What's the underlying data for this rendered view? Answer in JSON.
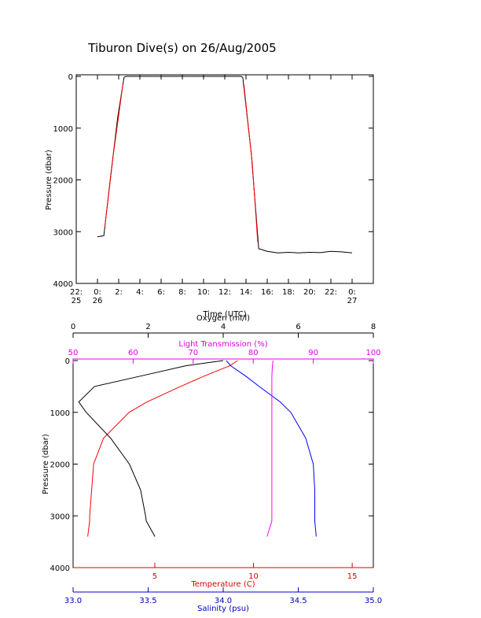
{
  "title": "Tiburon Dive(s) on 26/Aug/2005",
  "chart_data": [
    {
      "type": "line",
      "x_label": "Time (UTC)",
      "y_label": "Pressure (dbar)",
      "xlim": [
        -2,
        26
      ],
      "ylim": [
        0,
        4000
      ],
      "y_reversed": true,
      "xticks": [
        {
          "value": -2,
          "label": "22:\n25"
        },
        {
          "value": 0,
          "label": "0:\n26"
        },
        {
          "value": 2,
          "label": "2:"
        },
        {
          "value": 4,
          "label": "4:"
        },
        {
          "value": 6,
          "label": "6:"
        },
        {
          "value": 8,
          "label": "8:"
        },
        {
          "value": 10,
          "label": "10:"
        },
        {
          "value": 12,
          "label": "12:"
        },
        {
          "value": 14,
          "label": "14:"
        },
        {
          "value": 16,
          "label": "16:"
        },
        {
          "value": 18,
          "label": "18:"
        },
        {
          "value": 20,
          "label": "20:"
        },
        {
          "value": 22,
          "label": "22:"
        },
        {
          "value": 24,
          "label": "0:\n27"
        }
      ],
      "yticks": [
        0,
        1000,
        2000,
        3000,
        4000
      ],
      "series": [
        {
          "color": "#000000",
          "x": [
            0,
            0.6,
            1.2,
            1.9,
            2.5,
            2.7,
            13.5,
            13.7,
            14.5,
            15.2,
            16,
            17,
            18,
            19,
            20,
            21,
            22,
            23,
            24
          ],
          "values": [
            3100,
            3080,
            2000,
            800,
            20,
            0,
            0,
            20,
            1500,
            3330,
            3380,
            3410,
            3400,
            3410,
            3400,
            3405,
            3380,
            3390,
            3410
          ]
        },
        {
          "color": "#ff0000",
          "x": [
            0.7,
            1.5,
            2.4,
            null,
            13.8,
            14.6,
            15.1
          ],
          "values": [
            2900,
            1500,
            150,
            null,
            150,
            1700,
            3200
          ]
        }
      ]
    },
    {
      "type": "line",
      "y_label": "Pressure (dbar)",
      "ylim": [
        0,
        4000
      ],
      "y_reversed": true,
      "yticks": [
        0,
        1000,
        2000,
        3000,
        4000
      ],
      "x_axes": [
        {
          "label": "Oxygen (ml/l)",
          "position": "top",
          "color": "#000000",
          "lim": [
            0,
            8
          ],
          "ticks": [
            0,
            2,
            4,
            6,
            8
          ]
        },
        {
          "label": "Light Transmission (%)",
          "position": "top",
          "color": "#e000e0",
          "lim": [
            50,
            100
          ],
          "ticks": [
            50,
            60,
            70,
            80,
            90,
            100
          ]
        },
        {
          "label": "Temperature (C)",
          "position": "bottom",
          "color": "#e00000",
          "lim": [
            0.86,
            16.07
          ],
          "ticks": [
            5,
            10,
            15
          ]
        },
        {
          "label": "Salinity (psu)",
          "position": "bottom",
          "color": "#0000c0",
          "lim": [
            33,
            35
          ],
          "ticks": [
            {
              "value": 33,
              "label": "33.0"
            },
            {
              "value": 33.5,
              "label": "33.5"
            },
            {
              "value": 34,
              "label": "34.0"
            },
            {
              "value": 34.5,
              "label": "34.5"
            },
            {
              "value": 35,
              "label": "35.0"
            }
          ]
        }
      ],
      "series": [
        {
          "color": "#ff0000",
          "x_axis": 2,
          "x": [
            9.2,
            8.8,
            7.5,
            6.3,
            4.6,
            3.7,
            2.4,
            1.9,
            1.8,
            1.7,
            1.7,
            1.6
          ],
          "values": [
            0,
            100,
            300,
            500,
            800,
            1000,
            1500,
            2000,
            2500,
            3000,
            3100,
            3400
          ]
        },
        {
          "color": "#0000ff",
          "x_axis": 3,
          "x": [
            34.02,
            34.05,
            34.15,
            34.24,
            34.38,
            34.45,
            34.55,
            34.6,
            34.61,
            34.61,
            34.61,
            34.62
          ],
          "values": [
            0,
            100,
            300,
            500,
            800,
            1000,
            1500,
            2000,
            2500,
            3000,
            3100,
            3400
          ]
        },
        {
          "color": "#000000",
          "x_axis": 0,
          "x": [
            4.0,
            3.0,
            1.8,
            0.57,
            0.15,
            0.35,
            1.0,
            1.5,
            1.8,
            1.93,
            1.95,
            2.18
          ],
          "values": [
            0,
            100,
            300,
            500,
            800,
            1000,
            1500,
            2000,
            2500,
            3000,
            3100,
            3400
          ]
        },
        {
          "color": "#ff00ff",
          "x_axis": 1,
          "x": [
            83.3,
            83.2,
            83.1,
            83.1,
            83.1,
            83.1,
            83.1,
            83.1,
            83.1,
            83.1,
            83.1,
            82.3
          ],
          "values": [
            0,
            100,
            300,
            500,
            800,
            1000,
            1500,
            2000,
            2500,
            3000,
            3100,
            3400
          ]
        }
      ]
    }
  ]
}
